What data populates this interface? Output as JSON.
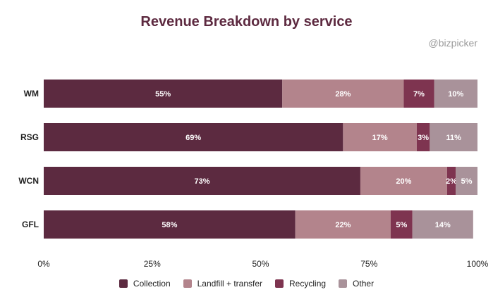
{
  "header": {
    "title": "Revenue Breakdown by service",
    "watermark": "@bizpicker"
  },
  "chart_data": {
    "type": "bar",
    "orientation": "horizontal",
    "stacked": true,
    "title": "Revenue Breakdown by service",
    "categories": [
      "WM",
      "RSG",
      "WCN",
      "GFL"
    ],
    "series": [
      {
        "name": "Collection",
        "color": "#5c2a40",
        "values": [
          55,
          69,
          73,
          58
        ]
      },
      {
        "name": "Landfill + transfer",
        "color": "#b3848c",
        "values": [
          28,
          17,
          20,
          22
        ]
      },
      {
        "name": "Recycling",
        "color": "#7e3450",
        "values": [
          7,
          3,
          2,
          5
        ]
      },
      {
        "name": "Other",
        "color": "#a9929a",
        "values": [
          10,
          11,
          5,
          14
        ]
      }
    ],
    "xlim": [
      0,
      100
    ],
    "x_ticks": [
      "0%",
      "25%",
      "50%",
      "75%",
      "100%"
    ],
    "value_suffix": "%",
    "grid": false,
    "legend": "bottom"
  }
}
